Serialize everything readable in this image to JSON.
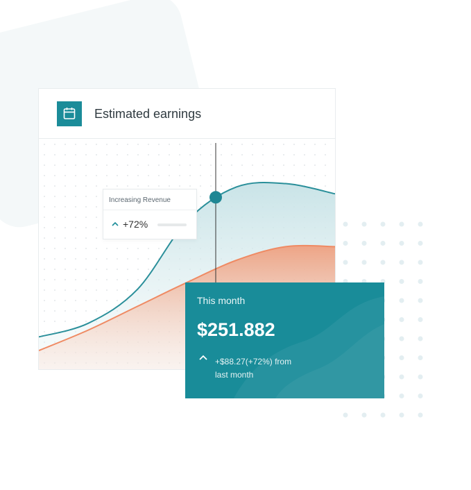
{
  "header": {
    "title": "Estimated earnings",
    "icon": "calendar-icon",
    "accent_color": "#1b8c99"
  },
  "tooltip": {
    "label": "Increasing Revenue",
    "value": "+72%",
    "icon": "chevron-up-icon"
  },
  "summary": {
    "label": "This month",
    "value": "$251.882",
    "change_line1": "+$88.27(+72%) from",
    "change_line2": "last month",
    "icon": "chevron-up-icon",
    "background_color": "#198c99"
  },
  "chart_data": {
    "type": "area",
    "title": "",
    "xlabel": "",
    "ylabel": "",
    "grid": true,
    "series": [
      {
        "color": "#2a8f9a",
        "values": [
          10,
          18,
          38,
          78,
          98,
          100,
          94
        ]
      },
      {
        "color": "#ef8a63",
        "values": [
          2,
          14,
          28,
          42,
          55,
          63,
          63
        ]
      }
    ],
    "ylim": [
      0,
      110
    ]
  }
}
